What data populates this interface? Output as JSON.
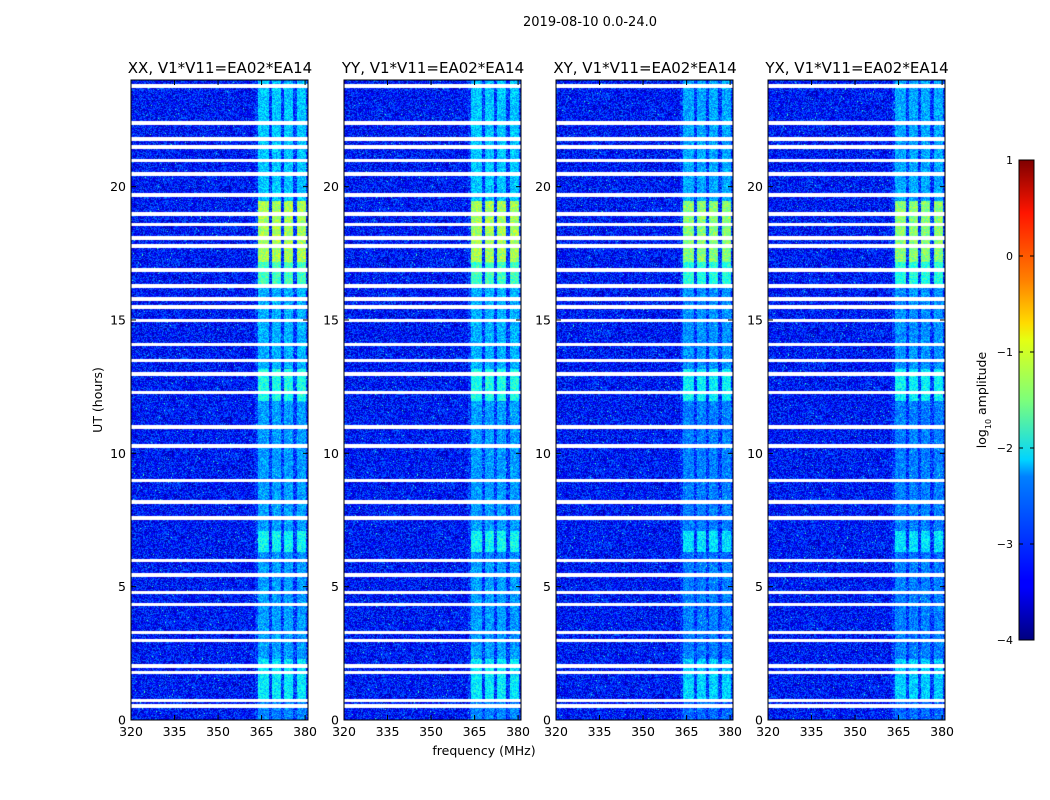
{
  "chart_data": {
    "type": "heatmap",
    "suptitle": "2019-08-10 0.0-24.0",
    "xlabel": "frequency (MHz)",
    "ylabel": "UT (hours)",
    "xlim": [
      320,
      381
    ],
    "ylim": [
      0,
      24
    ],
    "x_ticks": [
      320,
      335,
      350,
      365,
      380
    ],
    "y_ticks": [
      0,
      5,
      10,
      15,
      20
    ],
    "colorbar": {
      "label_prefix": "log",
      "label_sub": "10",
      "label_suffix": " amplitude",
      "range": [
        -4,
        1
      ],
      "ticks": [
        {
          "value": -4,
          "label": "−4"
        },
        {
          "value": -3,
          "label": "−3"
        },
        {
          "value": -2,
          "label": "−2"
        },
        {
          "value": -1,
          "label": "−1"
        },
        {
          "value": 0,
          "label": "0"
        },
        {
          "value": 1,
          "label": "1"
        }
      ],
      "colormap": "jet"
    },
    "panels": [
      {
        "title": "XX, V1*V11=EA02*EA14",
        "pol": "XX",
        "show_ylabel": true
      },
      {
        "title": "YY, V1*V11=EA02*EA14",
        "pol": "YY",
        "show_ylabel": false
      },
      {
        "title": "XY, V1*V11=EA02*EA14",
        "pol": "XY",
        "show_ylabel": false
      },
      {
        "title": "YX, V1*V11=EA02*EA14",
        "pol": "YX",
        "show_ylabel": false
      }
    ],
    "background_log_amplitude": -3.3,
    "bright_bands_mhz": [
      [
        363.5,
        367.5
      ],
      [
        368.5,
        371.5
      ],
      [
        372.5,
        375.5
      ],
      [
        377.0,
        380.0
      ]
    ],
    "active_periods_hours": [
      {
        "from": 0.7,
        "to": 2.3,
        "level": -2.2
      },
      {
        "from": 2.3,
        "to": 6.0,
        "level": -2.6
      },
      {
        "from": 6.3,
        "to": 7.1,
        "level": -2.1
      },
      {
        "from": 7.1,
        "to": 12.0,
        "level": -2.6
      },
      {
        "from": 12.0,
        "to": 13.2,
        "level": -2.0
      },
      {
        "from": 13.2,
        "to": 16.3,
        "level": -2.5
      },
      {
        "from": 16.3,
        "to": 17.2,
        "level": -1.8
      },
      {
        "from": 17.2,
        "to": 19.5,
        "level": -1.3
      },
      {
        "from": 19.5,
        "to": 24.0,
        "level": -2.4
      }
    ],
    "flagged_times_hours": [
      0.55,
      0.75,
      1.8,
      2.05,
      3.0,
      3.3,
      4.35,
      4.8,
      5.45,
      6.0,
      7.6,
      8.2,
      9.0,
      10.3,
      11.0,
      12.3,
      13.0,
      13.5,
      14.1,
      15.0,
      15.5,
      15.8,
      16.3,
      16.9,
      17.8,
      18.1,
      18.6,
      19.0,
      19.7,
      20.5,
      21.0,
      21.5,
      21.8,
      22.4,
      23.8
    ]
  }
}
